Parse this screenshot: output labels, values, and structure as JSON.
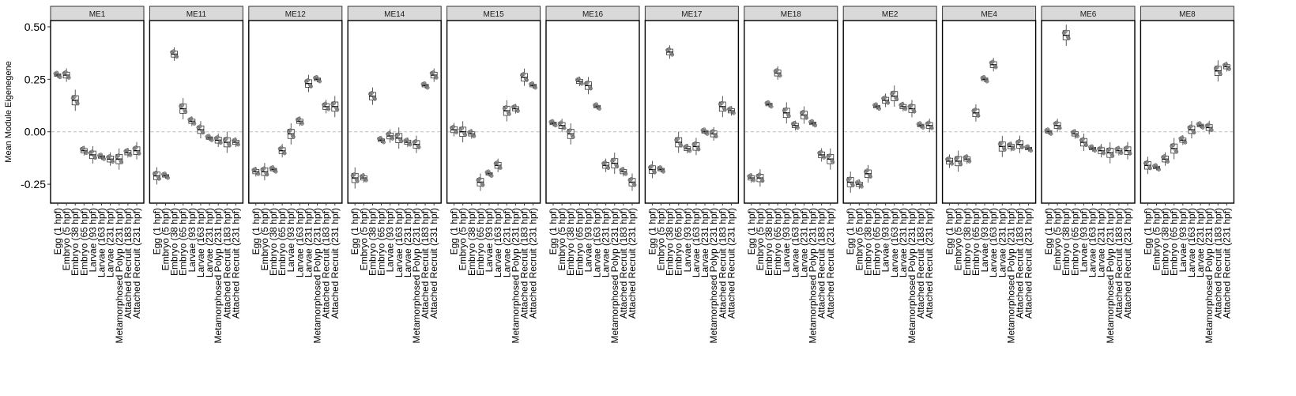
{
  "chart_data": {
    "type": "box",
    "title": "",
    "xlabel": "",
    "ylabel": "Mean Module Eigenegene",
    "ylim": [
      -0.34,
      0.53
    ],
    "yticks": [
      -0.25,
      0.0,
      0.25,
      0.5
    ],
    "ytick_labels": [
      "-0.25",
      "0.00",
      "0.25",
      "0.50"
    ],
    "reference_line": 0.0,
    "categories": [
      "Egg (1 hpf)",
      "Embryo (5 hpf)",
      "Embryo (38 hpf)",
      "Embryo (65 hpf)",
      "Larvae (93 hpf)",
      "Larvae (163 hpf)",
      "Larvae (231 hpf)",
      "Metamorphosed Polyp (231 hpf)",
      "Attached Recruit (183 hpf)",
      "Attached Recruit (231 hpf)"
    ],
    "panels": [
      {
        "name": "ME1",
        "medians": [
          0.27,
          0.27,
          0.15,
          -0.09,
          -0.11,
          -0.12,
          -0.13,
          -0.13,
          -0.1,
          -0.09
        ]
      },
      {
        "name": "ME11",
        "medians": [
          -0.21,
          -0.21,
          0.37,
          0.11,
          0.05,
          0.01,
          -0.03,
          -0.04,
          -0.05,
          -0.05
        ]
      },
      {
        "name": "ME12",
        "medians": [
          -0.19,
          -0.19,
          -0.18,
          -0.09,
          -0.01,
          0.05,
          0.23,
          0.25,
          0.12,
          0.12
        ]
      },
      {
        "name": "ME14",
        "medians": [
          -0.22,
          -0.22,
          0.17,
          -0.04,
          -0.02,
          -0.03,
          -0.05,
          -0.06,
          0.22,
          0.27
        ]
      },
      {
        "name": "ME15",
        "medians": [
          0.01,
          0.0,
          -0.01,
          -0.24,
          -0.2,
          -0.16,
          0.1,
          0.11,
          0.26,
          0.22
        ]
      },
      {
        "name": "ME16",
        "medians": [
          0.04,
          0.03,
          -0.01,
          0.24,
          0.22,
          0.12,
          -0.16,
          -0.15,
          -0.19,
          -0.24
        ]
      },
      {
        "name": "ME17",
        "medians": [
          -0.18,
          -0.18,
          0.38,
          -0.05,
          -0.08,
          -0.07,
          0.0,
          -0.01,
          0.12,
          0.1
        ]
      },
      {
        "name": "ME18",
        "medians": [
          -0.22,
          -0.22,
          0.13,
          0.28,
          0.09,
          0.03,
          0.08,
          0.04,
          -0.11,
          -0.13
        ]
      },
      {
        "name": "ME2",
        "medians": [
          -0.24,
          -0.25,
          -0.2,
          0.12,
          0.15,
          0.17,
          0.12,
          0.11,
          0.03,
          0.03
        ]
      },
      {
        "name": "ME4",
        "medians": [
          -0.14,
          -0.14,
          -0.13,
          0.09,
          0.25,
          0.32,
          -0.07,
          -0.07,
          -0.06,
          -0.08
        ]
      },
      {
        "name": "ME6",
        "medians": [
          0.0,
          0.03,
          0.46,
          -0.01,
          -0.05,
          -0.08,
          -0.09,
          -0.1,
          -0.09,
          -0.09
        ]
      },
      {
        "name": "ME8",
        "medians": [
          -0.16,
          -0.17,
          -0.13,
          -0.08,
          -0.04,
          0.01,
          0.03,
          0.02,
          0.29,
          0.31
        ]
      }
    ]
  }
}
